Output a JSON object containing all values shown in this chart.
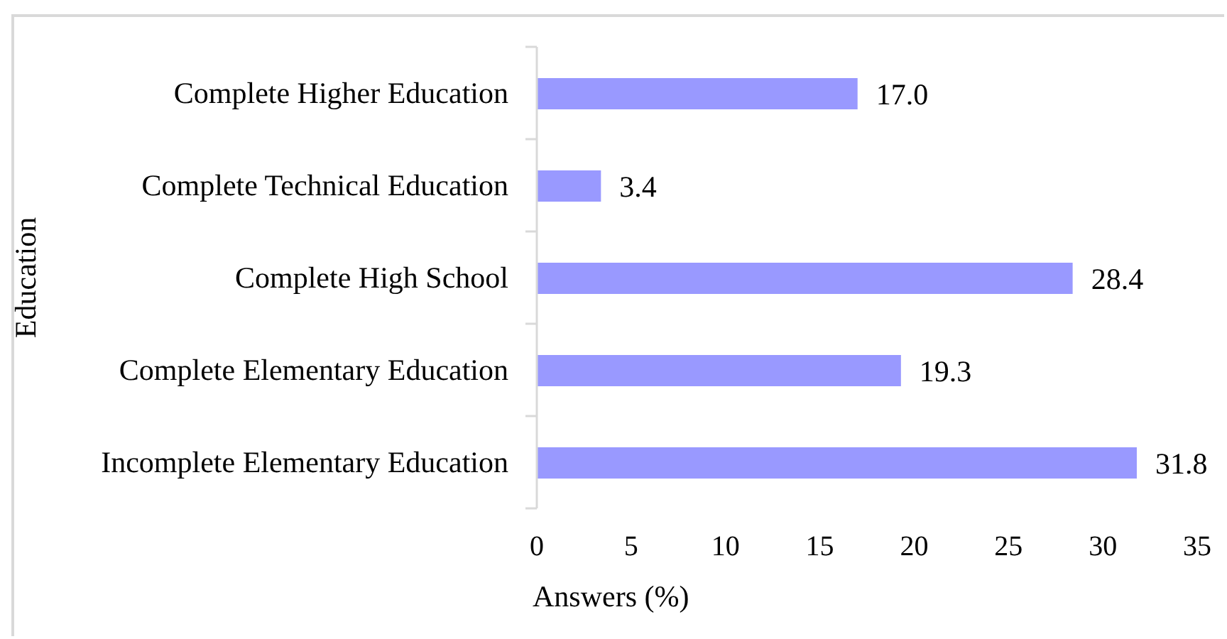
{
  "chart_data": {
    "type": "bar",
    "orientation": "horizontal",
    "categories": [
      "Complete Higher Education",
      "Complete Technical Education",
      "Complete High School",
      "Complete Elementary Education",
      "Incomplete Elementary Education"
    ],
    "values": [
      17.0,
      3.4,
      28.4,
      19.3,
      31.8
    ],
    "value_labels": [
      "17.0",
      "3.4",
      "28.4",
      "19.3",
      "31.8"
    ],
    "color": "#9999ff",
    "xlabel": "Answers (%)",
    "ylabel": "Education",
    "xlim": [
      0,
      35
    ],
    "xticks": [
      0,
      5,
      10,
      15,
      20,
      25,
      30,
      35
    ],
    "grid": false,
    "legend": false
  }
}
